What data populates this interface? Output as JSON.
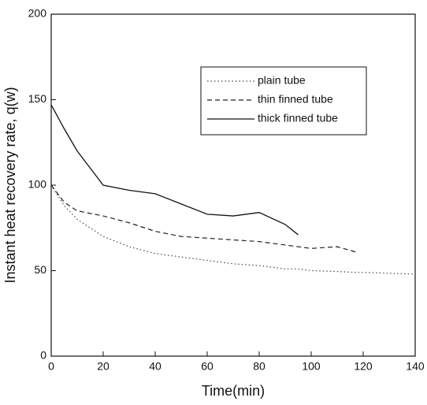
{
  "chart_data": {
    "type": "line",
    "x_label": "Time(min)",
    "y_label": "Instant heat recovery rate, q(w)",
    "x": [
      0,
      5,
      10,
      20,
      30,
      40,
      50,
      60,
      70,
      80,
      90,
      95,
      100,
      110,
      117,
      120,
      130,
      140
    ],
    "series": [
      {
        "name": "plain tube",
        "color": "#444444",
        "style": "dotted",
        "values": [
          100,
          88,
          80,
          70,
          64,
          60,
          58,
          56,
          54,
          53,
          51,
          51,
          50,
          49.5,
          49,
          49,
          48.5,
          48
        ]
      },
      {
        "name": "thin finned tube",
        "color": "#222222",
        "style": "dashed",
        "values": [
          100,
          90,
          85,
          82,
          78,
          73,
          70,
          69,
          68,
          67,
          65,
          64,
          63,
          64,
          61,
          null,
          null,
          null
        ]
      },
      {
        "name": "thick finned tube",
        "color": "#111111",
        "style": "solid",
        "values": [
          147,
          133,
          120,
          100,
          97,
          95,
          89,
          83,
          82,
          84,
          77,
          71,
          null,
          null,
          null,
          null,
          null,
          null
        ]
      }
    ],
    "xlim": [
      0,
      140
    ],
    "xticks": [
      0,
      20,
      40,
      60,
      80,
      100,
      120,
      140
    ],
    "ylim": [
      0,
      200
    ],
    "yticks": [
      0,
      50,
      100,
      150,
      200
    ],
    "legend": "upper right"
  }
}
